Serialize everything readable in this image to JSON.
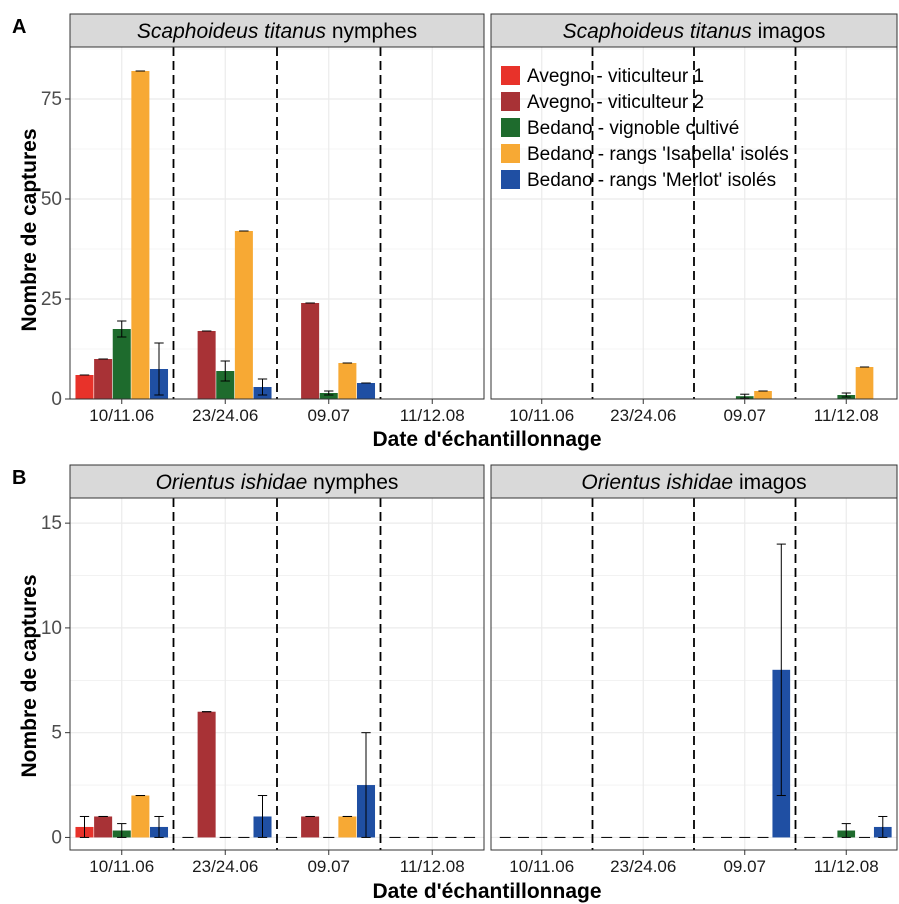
{
  "figure": {
    "panel_labels": [
      "A",
      "B"
    ],
    "x_axis_title": "Date d'échantillonnage",
    "y_axis_title": "Nombre de captures"
  },
  "legend": {
    "entries": [
      {
        "label": "Avegno - viticulteur 1",
        "color": "#e8322a"
      },
      {
        "label": "Avegno - viticulteur 2",
        "color": "#a83236"
      },
      {
        "label": "Bedano - vignoble cultivé",
        "color": "#1e6b2d"
      },
      {
        "label": "Bedano - rangs 'Isabella' isolés",
        "color": "#f7a934"
      },
      {
        "label": "Bedano - rangs 'Merlot' isolés",
        "color": "#1f4fa3"
      }
    ]
  },
  "chart_data": [
    {
      "type": "bar",
      "row": "A",
      "title_species": "Scaphoideus titanus",
      "title_stage": "nymphes",
      "categories": [
        "10/11.06",
        "23/24.06",
        "09.07",
        "11/12.08"
      ],
      "xlabel": "Date d'échantillonnage",
      "ylabel": "Nombre de captures",
      "ylim": [
        0,
        88
      ],
      "yticks": [
        0,
        25,
        50,
        75
      ],
      "series": [
        {
          "name": "Avegno - viticulteur 1",
          "values": [
            6,
            0,
            0,
            0
          ],
          "error": [
            0,
            0,
            0,
            0
          ]
        },
        {
          "name": "Avegno - viticulteur 2",
          "values": [
            10,
            17,
            24,
            0
          ],
          "error": [
            0,
            0,
            0,
            0
          ]
        },
        {
          "name": "Bedano - vignoble cultivé",
          "values": [
            17.5,
            7,
            1.5,
            0
          ],
          "error": [
            2,
            2.5,
            0.5,
            0
          ]
        },
        {
          "name": "Bedano - rangs 'Isabella' isolés",
          "values": [
            82,
            42,
            9,
            0
          ],
          "error": [
            0,
            0,
            0,
            0
          ]
        },
        {
          "name": "Bedano - rangs 'Merlot' isolés",
          "values": [
            7.5,
            3,
            4,
            0
          ],
          "error": [
            6.5,
            2,
            0,
            0
          ]
        }
      ]
    },
    {
      "type": "bar",
      "row": "A",
      "title_species": "Scaphoideus titanus",
      "title_stage": "imagos",
      "categories": [
        "10/11.06",
        "23/24.06",
        "09.07",
        "11/12.08"
      ],
      "xlabel": "Date d'échantillonnage",
      "ylim": [
        0,
        88
      ],
      "series": [
        {
          "name": "Avegno - viticulteur 1",
          "values": [
            0,
            0,
            0,
            0
          ],
          "error": [
            0,
            0,
            0,
            0
          ]
        },
        {
          "name": "Avegno - viticulteur 2",
          "values": [
            0,
            0,
            0,
            0
          ],
          "error": [
            0,
            0,
            0,
            0
          ]
        },
        {
          "name": "Bedano - vignoble cultivé",
          "values": [
            0,
            0,
            0.7,
            1
          ],
          "error": [
            0,
            0,
            0.5,
            0.5
          ]
        },
        {
          "name": "Bedano - rangs 'Isabella' isolés",
          "values": [
            0,
            0,
            2,
            8
          ],
          "error": [
            0,
            0,
            0,
            0
          ]
        },
        {
          "name": "Bedano - rangs 'Merlot' isolés",
          "values": [
            0,
            0,
            0,
            0
          ],
          "error": [
            0,
            0,
            0,
            0
          ]
        }
      ]
    },
    {
      "type": "bar",
      "row": "B",
      "title_species": "Orientus ishidae",
      "title_stage": "nymphes",
      "categories": [
        "10/11.06",
        "23/24.06",
        "09.07",
        "11/12.08"
      ],
      "xlabel": "Date d'échantillonnage",
      "ylabel": "Nombre de captures",
      "ylim": [
        -0.6,
        16.2
      ],
      "yticks": [
        0,
        5,
        10,
        15
      ],
      "series": [
        {
          "name": "Avegno - viticulteur 1",
          "values": [
            0.5,
            0,
            0,
            0
          ],
          "error": [
            0.5,
            0,
            0,
            0
          ]
        },
        {
          "name": "Avegno - viticulteur 2",
          "values": [
            1,
            6,
            1,
            0
          ],
          "error": [
            0,
            0,
            0,
            0
          ]
        },
        {
          "name": "Bedano - vignoble cultivé",
          "values": [
            0.33,
            0,
            0,
            0
          ],
          "error": [
            0.33,
            0,
            0,
            0
          ]
        },
        {
          "name": "Bedano - rangs 'Isabella' isolés",
          "values": [
            2,
            0,
            1,
            0
          ],
          "error": [
            0,
            0,
            0,
            0
          ]
        },
        {
          "name": "Bedano - rangs 'Merlot' isolés",
          "values": [
            0.5,
            1,
            2.5,
            0
          ],
          "error": [
            0.5,
            1,
            2.5,
            0
          ]
        }
      ]
    },
    {
      "type": "bar",
      "row": "B",
      "title_species": "Orientus ishidae",
      "title_stage": "imagos",
      "categories": [
        "10/11.06",
        "23/24.06",
        "09.07",
        "11/12.08"
      ],
      "xlabel": "Date d'échantillonnage",
      "ylim": [
        -0.6,
        16.2
      ],
      "series": [
        {
          "name": "Avegno - viticulteur 1",
          "values": [
            0,
            0,
            0,
            0
          ],
          "error": [
            0,
            0,
            0,
            0
          ]
        },
        {
          "name": "Avegno - viticulteur 2",
          "values": [
            0,
            0,
            0,
            0
          ],
          "error": [
            0,
            0,
            0,
            0
          ]
        },
        {
          "name": "Bedano - vignoble cultivé",
          "values": [
            0,
            0,
            0,
            0.33
          ],
          "error": [
            0,
            0,
            0,
            0.33
          ]
        },
        {
          "name": "Bedano - rangs 'Isabella' isolés",
          "values": [
            0,
            0,
            0,
            0
          ],
          "error": [
            0,
            0,
            0,
            0
          ]
        },
        {
          "name": "Bedano - rangs 'Merlot' isolés",
          "values": [
            0,
            0,
            8,
            0.5
          ],
          "error": [
            0,
            0,
            6,
            0.5
          ]
        }
      ]
    }
  ]
}
